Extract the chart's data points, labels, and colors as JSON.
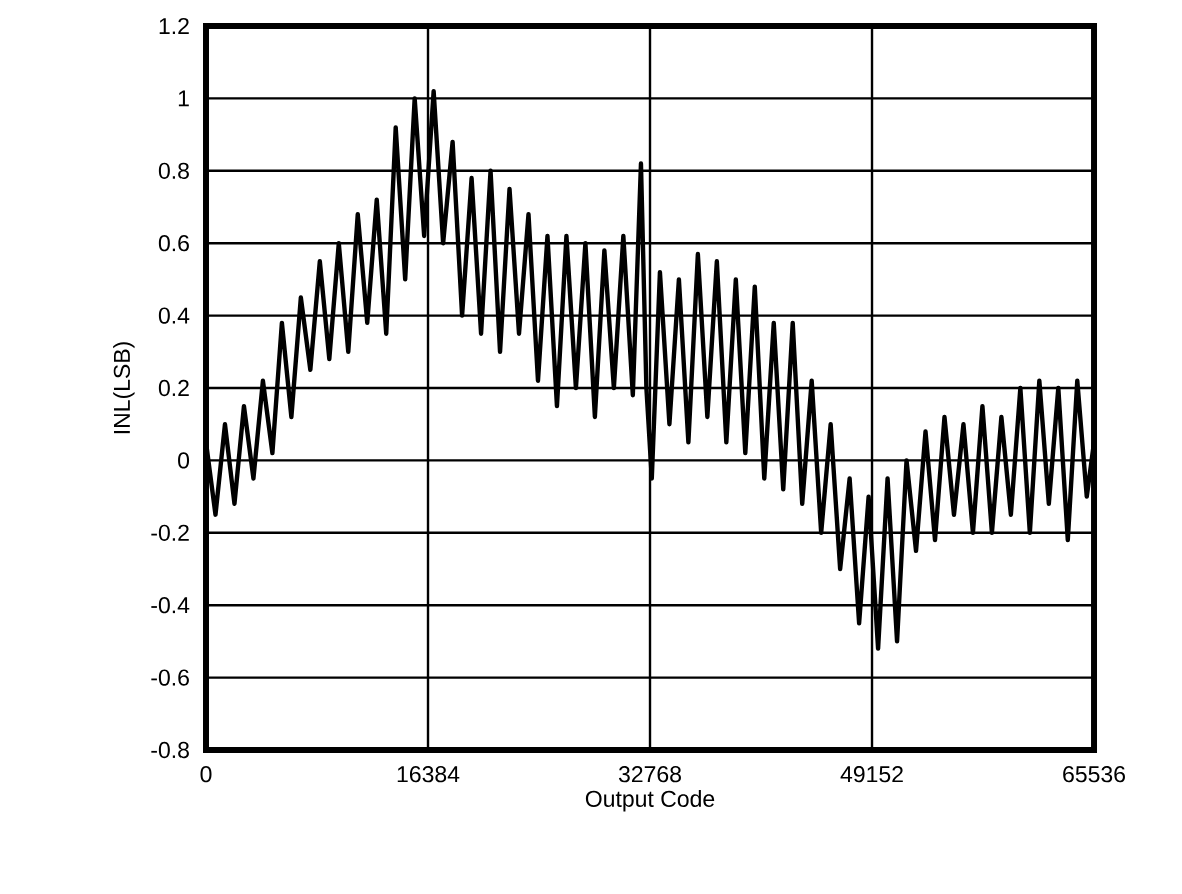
{
  "chart_data": {
    "type": "line",
    "xlabel": "Output Code",
    "ylabel": "INL(LSB)",
    "color": "#000000",
    "grid": true,
    "marker": "none",
    "line_style": "solid",
    "xlim": [
      0,
      65536
    ],
    "ylim": [
      -0.8,
      1.2
    ],
    "xticks": [
      0,
      16384,
      32768,
      49152,
      65536
    ],
    "yticks": [
      -0.8,
      -0.6,
      -0.4,
      -0.2,
      0,
      0.2,
      0.4,
      0.6,
      0.8,
      1,
      1.2
    ],
    "x": [
      0,
      700,
      1400,
      2100,
      2800,
      3500,
      4200,
      4900,
      5600,
      6300,
      7000,
      7700,
      8400,
      9100,
      9800,
      10500,
      11200,
      11900,
      12600,
      13300,
      14000,
      14700,
      15400,
      16100,
      16800,
      17500,
      18200,
      18900,
      19600,
      20300,
      21000,
      21700,
      22400,
      23100,
      23800,
      24500,
      25200,
      25900,
      26600,
      27300,
      28000,
      28700,
      29400,
      30100,
      30800,
      31500,
      32100,
      32500,
      32900,
      33500,
      34200,
      34900,
      35600,
      36300,
      37000,
      37700,
      38400,
      39100,
      39800,
      40500,
      41200,
      41900,
      42600,
      43300,
      44000,
      44700,
      45400,
      46100,
      46800,
      47500,
      48200,
      48900,
      49600,
      50300,
      51000,
      51700,
      52400,
      53100,
      53800,
      54500,
      55200,
      55900,
      56600,
      57300,
      58000,
      58700,
      59400,
      60100,
      60800,
      61500,
      62200,
      62900,
      63600,
      64300,
      65000,
      65536
    ],
    "values": [
      0.05,
      -0.15,
      0.1,
      -0.12,
      0.15,
      -0.05,
      0.22,
      0.02,
      0.38,
      0.12,
      0.45,
      0.25,
      0.55,
      0.28,
      0.6,
      0.3,
      0.68,
      0.38,
      0.72,
      0.35,
      0.92,
      0.5,
      1.0,
      0.62,
      1.02,
      0.6,
      0.88,
      0.4,
      0.78,
      0.35,
      0.8,
      0.3,
      0.75,
      0.35,
      0.68,
      0.22,
      0.62,
      0.15,
      0.62,
      0.2,
      0.6,
      0.12,
      0.58,
      0.2,
      0.62,
      0.18,
      0.82,
      0.2,
      -0.05,
      0.52,
      0.1,
      0.5,
      0.05,
      0.57,
      0.12,
      0.55,
      0.05,
      0.5,
      0.02,
      0.48,
      -0.05,
      0.38,
      -0.08,
      0.38,
      -0.12,
      0.22,
      -0.2,
      0.1,
      -0.3,
      -0.05,
      -0.45,
      -0.1,
      -0.52,
      -0.05,
      -0.5,
      0.0,
      -0.25,
      0.08,
      -0.22,
      0.12,
      -0.15,
      0.1,
      -0.2,
      0.15,
      -0.2,
      0.12,
      -0.15,
      0.2,
      -0.2,
      0.22,
      -0.12,
      0.2,
      -0.22,
      0.22,
      -0.1,
      0.05
    ]
  }
}
